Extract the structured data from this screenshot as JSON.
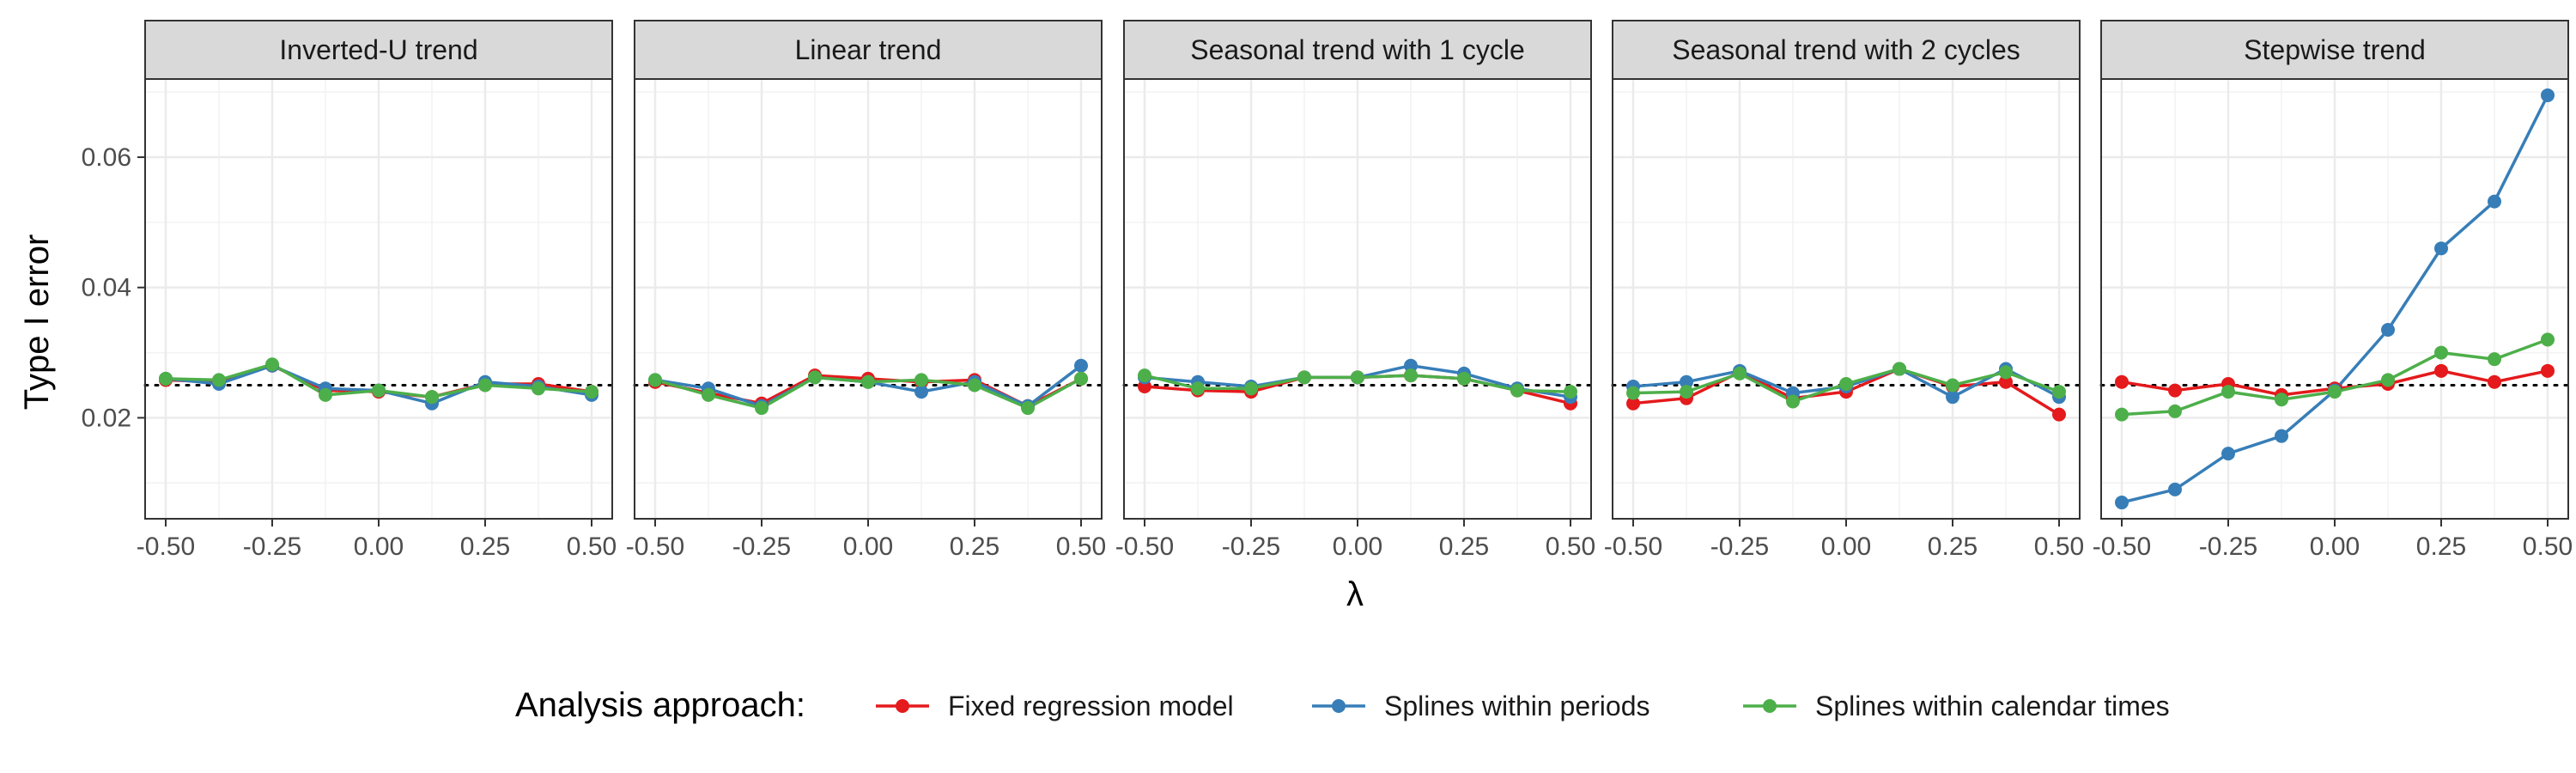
{
  "chart_data": {
    "type": "line",
    "ylabel": "Type I error",
    "xlabel": "λ",
    "x": [
      -0.5,
      -0.375,
      -0.25,
      -0.125,
      0.0,
      0.125,
      0.25,
      0.375,
      0.5
    ],
    "xticks": [
      -0.5,
      -0.25,
      0.0,
      0.25,
      0.5
    ],
    "xtick_labels": [
      "-0.50",
      "-0.25",
      "0.00",
      "0.25",
      "0.50"
    ],
    "yticks": [
      0.02,
      0.04,
      0.06
    ],
    "ytick_labels": [
      "0.02",
      "0.04",
      "0.06"
    ],
    "xlim": [
      -0.525,
      0.525
    ],
    "ylim": [
      0.0045,
      0.072
    ],
    "reference_line": 0.025,
    "grid": true,
    "legend_position": "bottom",
    "legend_title": "Analysis approach:",
    "series_styles": [
      {
        "name": "Fixed regression model",
        "color": "#E41A1C"
      },
      {
        "name": "Splines within periods",
        "color": "#377EB8"
      },
      {
        "name": "Splines within calendar times",
        "color": "#4DAF4A"
      }
    ],
    "panels": [
      {
        "title": "Inverted-U trend",
        "series": [
          {
            "name": "Fixed regression model",
            "values": [
              0.0258,
              0.0255,
              0.028,
              0.0242,
              0.024,
              0.0232,
              0.0252,
              0.0252,
              0.024
            ]
          },
          {
            "name": "Splines within periods",
            "values": [
              0.026,
              0.0252,
              0.028,
              0.0245,
              0.0242,
              0.0222,
              0.0255,
              0.0248,
              0.0235
            ]
          },
          {
            "name": "Splines within calendar times",
            "values": [
              0.026,
              0.0258,
              0.0282,
              0.0235,
              0.0242,
              0.0232,
              0.025,
              0.0245,
              0.024
            ]
          }
        ]
      },
      {
        "title": "Linear trend",
        "series": [
          {
            "name": "Fixed regression model",
            "values": [
              0.0255,
              0.0238,
              0.0222,
              0.0265,
              0.026,
              0.0255,
              0.0258,
              0.0218,
              0.026
            ]
          },
          {
            "name": "Splines within periods",
            "values": [
              0.0258,
              0.0245,
              0.0218,
              0.0262,
              0.0255,
              0.024,
              0.0255,
              0.0218,
              0.028
            ]
          },
          {
            "name": "Splines within calendar times",
            "values": [
              0.0258,
              0.0235,
              0.0215,
              0.0262,
              0.0255,
              0.0258,
              0.025,
              0.0215,
              0.026
            ]
          }
        ]
      },
      {
        "title": "Seasonal trend with 1 cycle",
        "series": [
          {
            "name": "Fixed regression model",
            "values": [
              0.0248,
              0.0242,
              0.024,
              0.0262,
              0.0262,
              0.0265,
              0.026,
              0.0242,
              0.0222
            ]
          },
          {
            "name": "Splines within periods",
            "values": [
              0.0262,
              0.0255,
              0.0248,
              0.0262,
              0.0262,
              0.028,
              0.0268,
              0.0245,
              0.0232
            ]
          },
          {
            "name": "Splines within calendar times",
            "values": [
              0.0265,
              0.0245,
              0.0245,
              0.0262,
              0.0262,
              0.0265,
              0.026,
              0.0242,
              0.024
            ]
          }
        ]
      },
      {
        "title": "Seasonal trend with 2 cycles",
        "series": [
          {
            "name": "Fixed regression model",
            "values": [
              0.0222,
              0.023,
              0.027,
              0.023,
              0.024,
              0.0275,
              0.0248,
              0.0255,
              0.0205
            ]
          },
          {
            "name": "Splines within periods",
            "values": [
              0.0248,
              0.0255,
              0.0272,
              0.0238,
              0.0248,
              0.0275,
              0.0232,
              0.0275,
              0.0232
            ]
          },
          {
            "name": "Splines within calendar times",
            "values": [
              0.0238,
              0.024,
              0.0268,
              0.0225,
              0.0252,
              0.0275,
              0.025,
              0.027,
              0.024
            ]
          }
        ]
      },
      {
        "title": "Stepwise trend",
        "series": [
          {
            "name": "Fixed regression model",
            "values": [
              0.0255,
              0.0242,
              0.0252,
              0.0235,
              0.0245,
              0.0252,
              0.0272,
              0.0255,
              0.0272
            ]
          },
          {
            "name": "Splines within periods",
            "values": [
              0.007,
              0.009,
              0.0145,
              0.0172,
              0.0242,
              0.0335,
              0.046,
              0.0532,
              0.0695
            ]
          },
          {
            "name": "Splines within calendar times",
            "values": [
              0.0205,
              0.021,
              0.024,
              0.0228,
              0.024,
              0.0258,
              0.03,
              0.029,
              0.032
            ]
          }
        ]
      }
    ]
  }
}
